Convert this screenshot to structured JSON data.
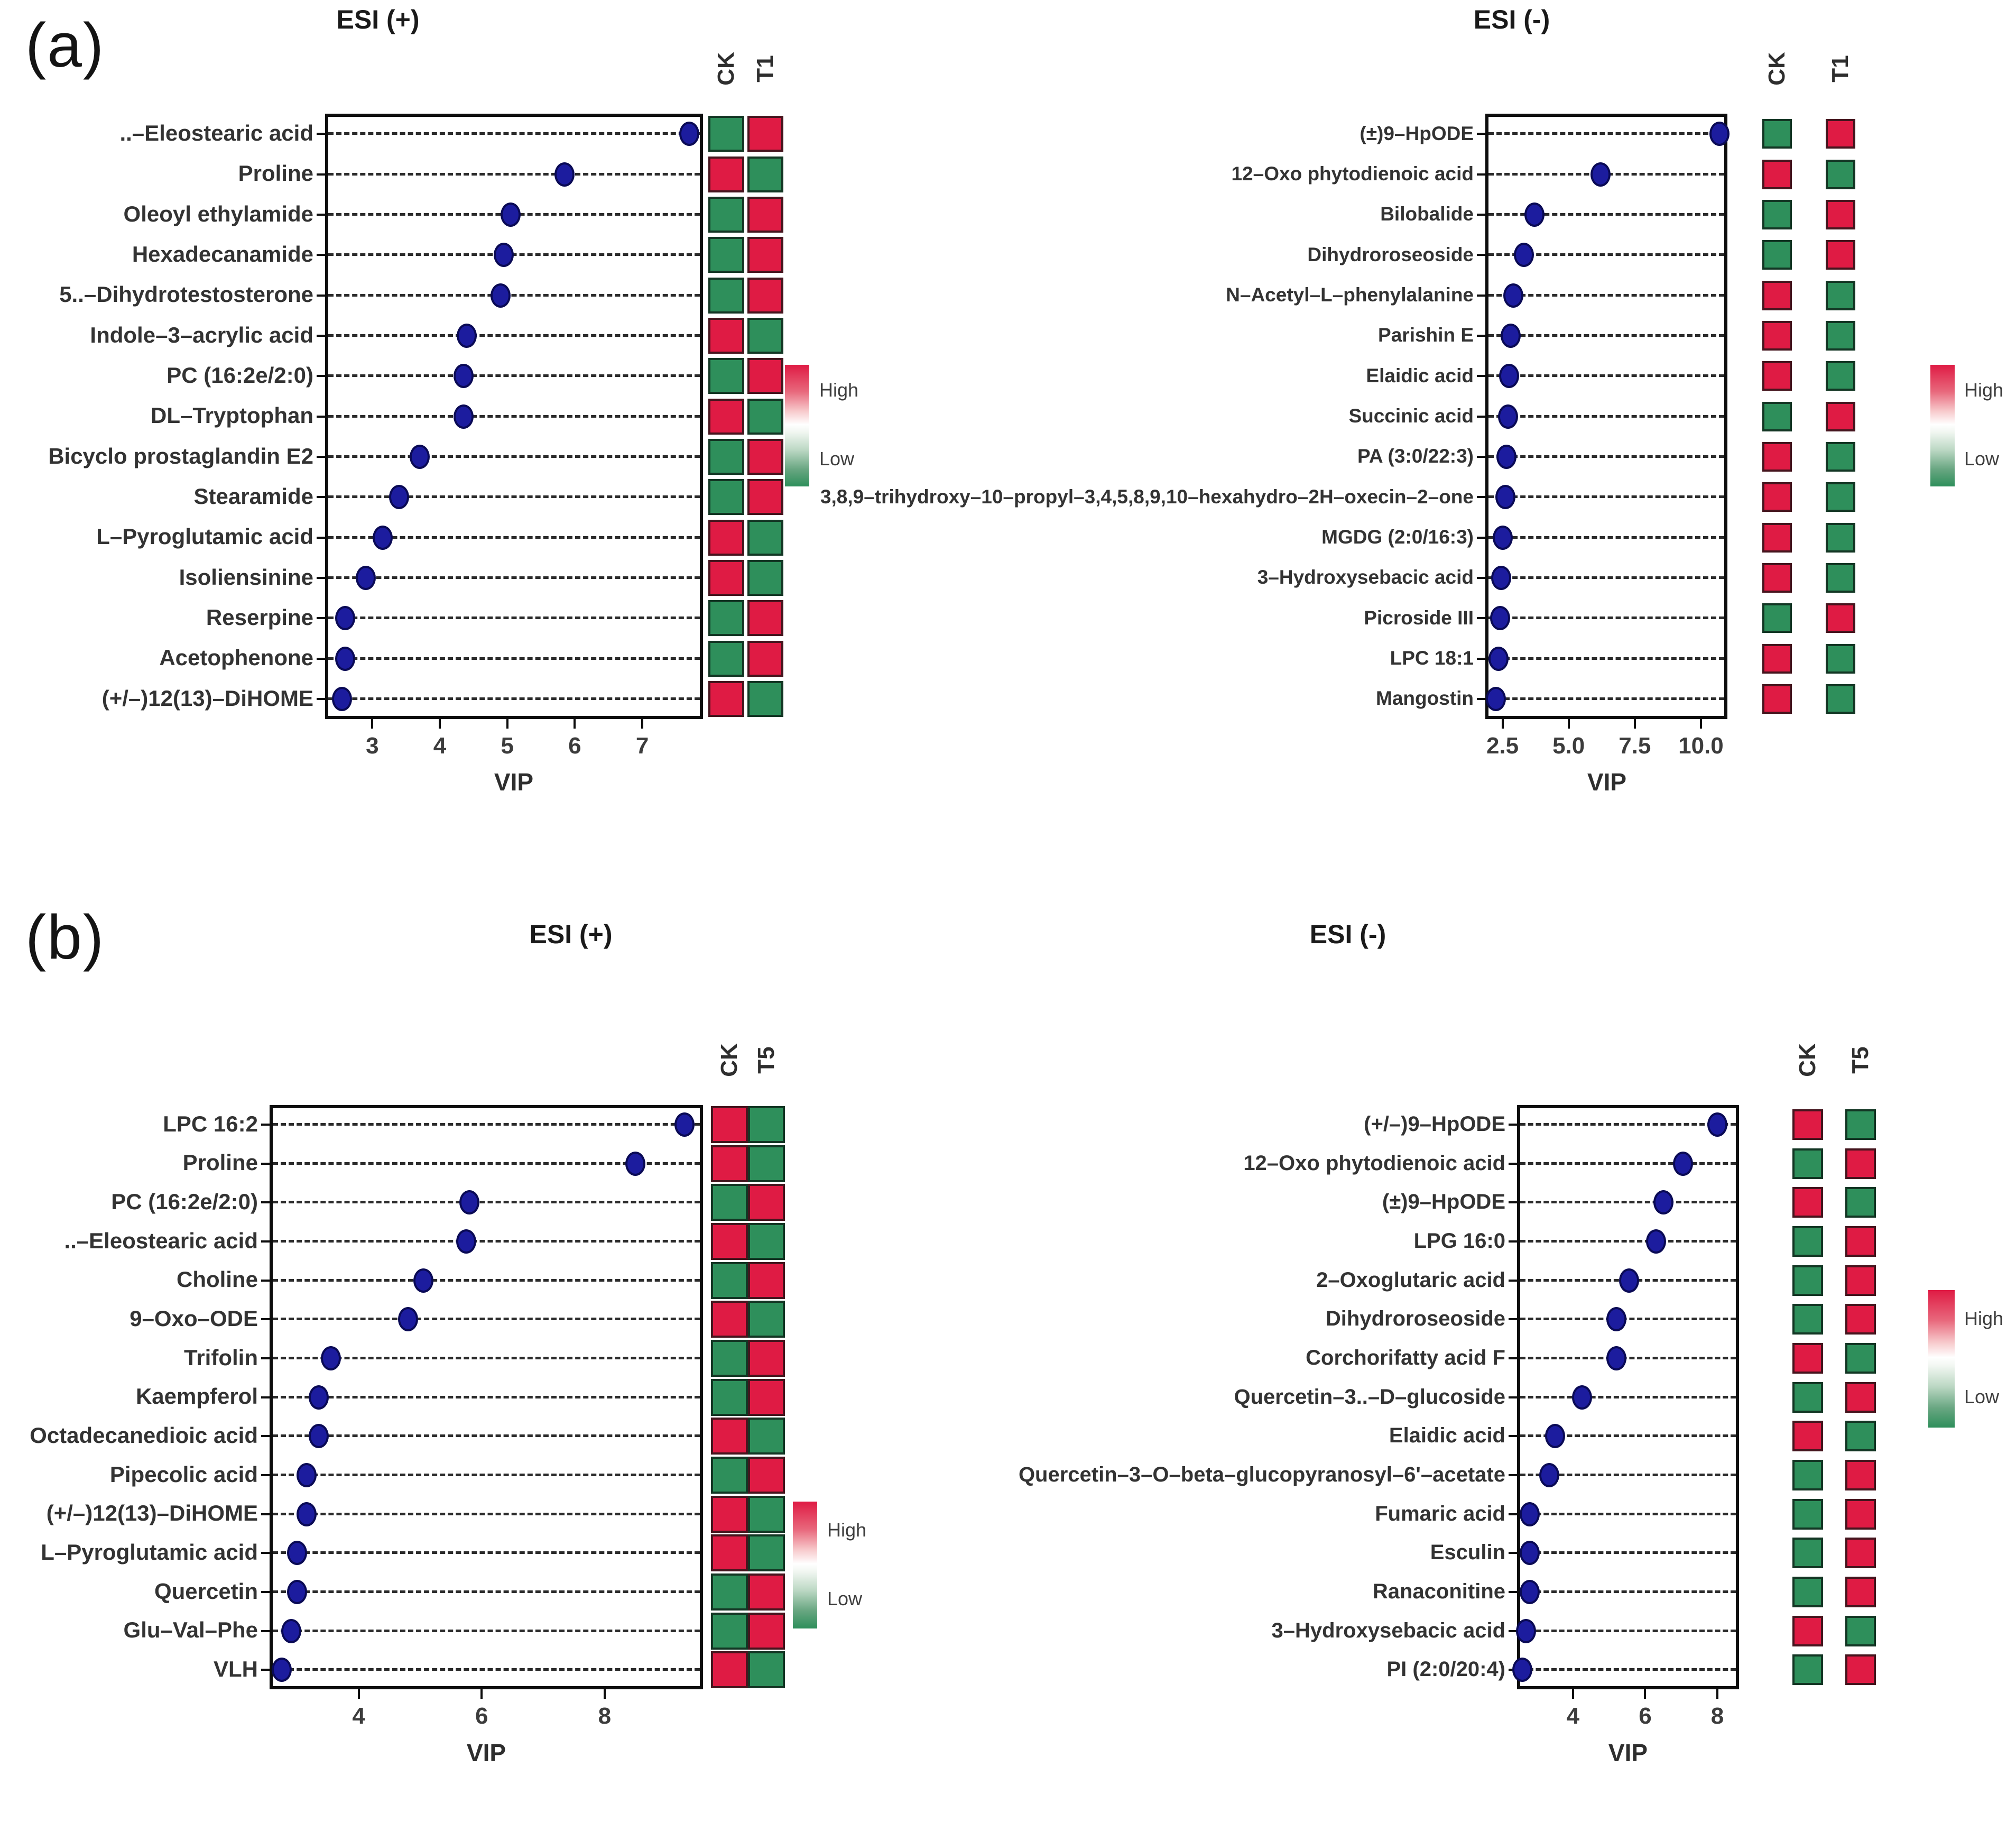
{
  "panel_a_label": "(a)",
  "panel_b_label": "(b)",
  "colors": {
    "high_square": "#df1b44",
    "low_square": "#2e8f5b",
    "dot_fill": "#1c1c9e",
    "dot_border": "#0a0a55",
    "axis": "#0d0d0d"
  },
  "chart_data": [
    {
      "type": "scatter",
      "id": "a-esi-pos",
      "title": "ESI (+)",
      "xlabel": "VIP",
      "columns": [
        "CK",
        "T1"
      ],
      "legend": {
        "high": "High",
        "low": "Low"
      },
      "xlim": [
        2.3,
        7.9
      ],
      "x_ticks": [
        3,
        4,
        5,
        6,
        7
      ],
      "x_tick_labels": [
        "3",
        "4",
        "5",
        "6",
        "7"
      ],
      "grid": "dashed-horizontal",
      "legend_position": "right",
      "rows": [
        {
          "name": "..–Eleostearic acid",
          "vip": 7.7,
          "cells": [
            "low",
            "high"
          ]
        },
        {
          "name": "Proline",
          "vip": 5.85,
          "cells": [
            "high",
            "low"
          ]
        },
        {
          "name": "Oleoyl ethylamide",
          "vip": 5.05,
          "cells": [
            "low",
            "high"
          ]
        },
        {
          "name": "Hexadecanamide",
          "vip": 4.95,
          "cells": [
            "low",
            "high"
          ]
        },
        {
          "name": "5..–Dihydrotestosterone",
          "vip": 4.9,
          "cells": [
            "low",
            "high"
          ]
        },
        {
          "name": "Indole–3–acrylic acid",
          "vip": 4.4,
          "cells": [
            "high",
            "low"
          ]
        },
        {
          "name": "PC (16:2e/2:0)",
          "vip": 4.35,
          "cells": [
            "low",
            "high"
          ]
        },
        {
          "name": "DL–Tryptophan",
          "vip": 4.35,
          "cells": [
            "high",
            "low"
          ]
        },
        {
          "name": "Bicyclo prostaglandin E2",
          "vip": 3.7,
          "cells": [
            "low",
            "high"
          ]
        },
        {
          "name": "Stearamide",
          "vip": 3.4,
          "cells": [
            "low",
            "high"
          ]
        },
        {
          "name": "L–Pyroglutamic acid",
          "vip": 3.15,
          "cells": [
            "high",
            "low"
          ]
        },
        {
          "name": "Isoliensinine",
          "vip": 2.9,
          "cells": [
            "high",
            "low"
          ]
        },
        {
          "name": "Reserpine",
          "vip": 2.6,
          "cells": [
            "low",
            "high"
          ]
        },
        {
          "name": "Acetophenone",
          "vip": 2.6,
          "cells": [
            "low",
            "high"
          ]
        },
        {
          "name": "(+/–)12(13)–DiHOME",
          "vip": 2.55,
          "cells": [
            "high",
            "low"
          ]
        }
      ]
    },
    {
      "type": "scatter",
      "id": "a-esi-neg",
      "title": "ESI (-)",
      "xlabel": "VIP",
      "columns": [
        "CK",
        "T1"
      ],
      "legend": {
        "high": "High",
        "low": "Low"
      },
      "xlim": [
        1.85,
        11.0
      ],
      "x_ticks": [
        2.5,
        5.0,
        7.5,
        10.0
      ],
      "x_tick_labels": [
        "2.5",
        "5.0",
        "7.5",
        "10.0"
      ],
      "grid": "dashed-horizontal",
      "legend_position": "right",
      "rows": [
        {
          "name": "(±)9–HpODE",
          "vip": 10.7,
          "cells": [
            "low",
            "high"
          ]
        },
        {
          "name": "12–Oxo phytodienoic acid",
          "vip": 6.2,
          "cells": [
            "high",
            "low"
          ]
        },
        {
          "name": "Bilobalide",
          "vip": 3.7,
          "cells": [
            "low",
            "high"
          ]
        },
        {
          "name": "Dihydroroseoside",
          "vip": 3.3,
          "cells": [
            "low",
            "high"
          ]
        },
        {
          "name": "N–Acetyl–L–phenylalanine",
          "vip": 2.9,
          "cells": [
            "high",
            "low"
          ]
        },
        {
          "name": "Parishin E",
          "vip": 2.8,
          "cells": [
            "high",
            "low"
          ]
        },
        {
          "name": "Elaidic acid",
          "vip": 2.75,
          "cells": [
            "high",
            "low"
          ]
        },
        {
          "name": "Succinic acid",
          "vip": 2.7,
          "cells": [
            "low",
            "high"
          ]
        },
        {
          "name": "PA (3:0/22:3)",
          "vip": 2.65,
          "cells": [
            "high",
            "low"
          ]
        },
        {
          "name": "3,8,9–trihydroxy–10–propyl–3,4,5,8,9,10–hexahydro–2H–oxecin–2–one",
          "vip": 2.6,
          "cells": [
            "high",
            "low"
          ]
        },
        {
          "name": "MGDG (2:0/16:3)",
          "vip": 2.5,
          "cells": [
            "high",
            "low"
          ]
        },
        {
          "name": "3–Hydroxysebacic acid",
          "vip": 2.45,
          "cells": [
            "high",
            "low"
          ]
        },
        {
          "name": "Picroside III",
          "vip": 2.4,
          "cells": [
            "low",
            "high"
          ]
        },
        {
          "name": "LPC 18:1",
          "vip": 2.35,
          "cells": [
            "high",
            "low"
          ]
        },
        {
          "name": "Mangostin",
          "vip": 2.25,
          "cells": [
            "high",
            "low"
          ]
        }
      ]
    },
    {
      "type": "scatter",
      "id": "b-esi-pos",
      "title": "ESI (+)",
      "xlabel": "VIP",
      "columns": [
        "CK",
        "T5"
      ],
      "legend": {
        "high": "High",
        "low": "Low"
      },
      "xlim": [
        2.55,
        9.6
      ],
      "x_ticks": [
        4,
        6,
        8
      ],
      "x_tick_labels": [
        "4",
        "6",
        "8"
      ],
      "grid": "dashed-horizontal",
      "legend_position": "right",
      "rows": [
        {
          "name": "LPC 16:2",
          "vip": 9.3,
          "cells": [
            "high",
            "low"
          ]
        },
        {
          "name": "Proline",
          "vip": 8.5,
          "cells": [
            "high",
            "low"
          ]
        },
        {
          "name": "PC (16:2e/2:0)",
          "vip": 5.8,
          "cells": [
            "low",
            "high"
          ]
        },
        {
          "name": "..–Eleostearic acid",
          "vip": 5.75,
          "cells": [
            "high",
            "low"
          ]
        },
        {
          "name": "Choline",
          "vip": 5.05,
          "cells": [
            "low",
            "high"
          ]
        },
        {
          "name": "9–Oxo–ODE",
          "vip": 4.8,
          "cells": [
            "high",
            "low"
          ]
        },
        {
          "name": "Trifolin",
          "vip": 3.55,
          "cells": [
            "low",
            "high"
          ]
        },
        {
          "name": "Kaempferol",
          "vip": 3.35,
          "cells": [
            "low",
            "high"
          ]
        },
        {
          "name": "Octadecanedioic acid",
          "vip": 3.35,
          "cells": [
            "high",
            "low"
          ]
        },
        {
          "name": "Pipecolic acid",
          "vip": 3.15,
          "cells": [
            "low",
            "high"
          ]
        },
        {
          "name": "(+/–)12(13)–DiHOME",
          "vip": 3.15,
          "cells": [
            "high",
            "low"
          ]
        },
        {
          "name": "L–Pyroglutamic acid",
          "vip": 3.0,
          "cells": [
            "high",
            "low"
          ]
        },
        {
          "name": "Quercetin",
          "vip": 3.0,
          "cells": [
            "low",
            "high"
          ]
        },
        {
          "name": "Glu–Val–Phe",
          "vip": 2.9,
          "cells": [
            "low",
            "high"
          ]
        },
        {
          "name": "VLH",
          "vip": 2.75,
          "cells": [
            "high",
            "low"
          ]
        }
      ]
    },
    {
      "type": "scatter",
      "id": "b-esi-neg",
      "title": "ESI (-)",
      "xlabel": "VIP",
      "columns": [
        "CK",
        "T5"
      ],
      "legend": {
        "high": "High",
        "low": "Low"
      },
      "xlim": [
        2.45,
        8.6
      ],
      "x_ticks": [
        4,
        6,
        8
      ],
      "x_tick_labels": [
        "4",
        "6",
        "8"
      ],
      "grid": "dashed-horizontal",
      "legend_position": "right",
      "rows": [
        {
          "name": "(+/–)9–HpODE",
          "vip": 8.0,
          "cells": [
            "high",
            "low"
          ]
        },
        {
          "name": "12–Oxo phytodienoic acid",
          "vip": 7.05,
          "cells": [
            "low",
            "high"
          ]
        },
        {
          "name": "(±)9–HpODE",
          "vip": 6.5,
          "cells": [
            "high",
            "low"
          ]
        },
        {
          "name": "LPG 16:0",
          "vip": 6.3,
          "cells": [
            "low",
            "high"
          ]
        },
        {
          "name": "2–Oxoglutaric acid",
          "vip": 5.55,
          "cells": [
            "low",
            "high"
          ]
        },
        {
          "name": "Dihydroroseoside",
          "vip": 5.2,
          "cells": [
            "low",
            "high"
          ]
        },
        {
          "name": "Corchorifatty acid F",
          "vip": 5.2,
          "cells": [
            "high",
            "low"
          ]
        },
        {
          "name": "Quercetin–3..–D–glucoside",
          "vip": 4.25,
          "cells": [
            "low",
            "high"
          ]
        },
        {
          "name": "Elaidic acid",
          "vip": 3.5,
          "cells": [
            "high",
            "low"
          ]
        },
        {
          "name": "Quercetin–3–O–beta–glucopyranosyl–6'–acetate",
          "vip": 3.35,
          "cells": [
            "low",
            "high"
          ]
        },
        {
          "name": "Fumaric acid",
          "vip": 2.8,
          "cells": [
            "low",
            "high"
          ]
        },
        {
          "name": "Esculin",
          "vip": 2.8,
          "cells": [
            "low",
            "high"
          ]
        },
        {
          "name": "Ranaconitine",
          "vip": 2.8,
          "cells": [
            "low",
            "high"
          ]
        },
        {
          "name": "3–Hydroxysebacic acid",
          "vip": 2.7,
          "cells": [
            "high",
            "low"
          ]
        },
        {
          "name": "PI (2:0/20:4)",
          "vip": 2.6,
          "cells": [
            "low",
            "high"
          ]
        }
      ]
    }
  ]
}
